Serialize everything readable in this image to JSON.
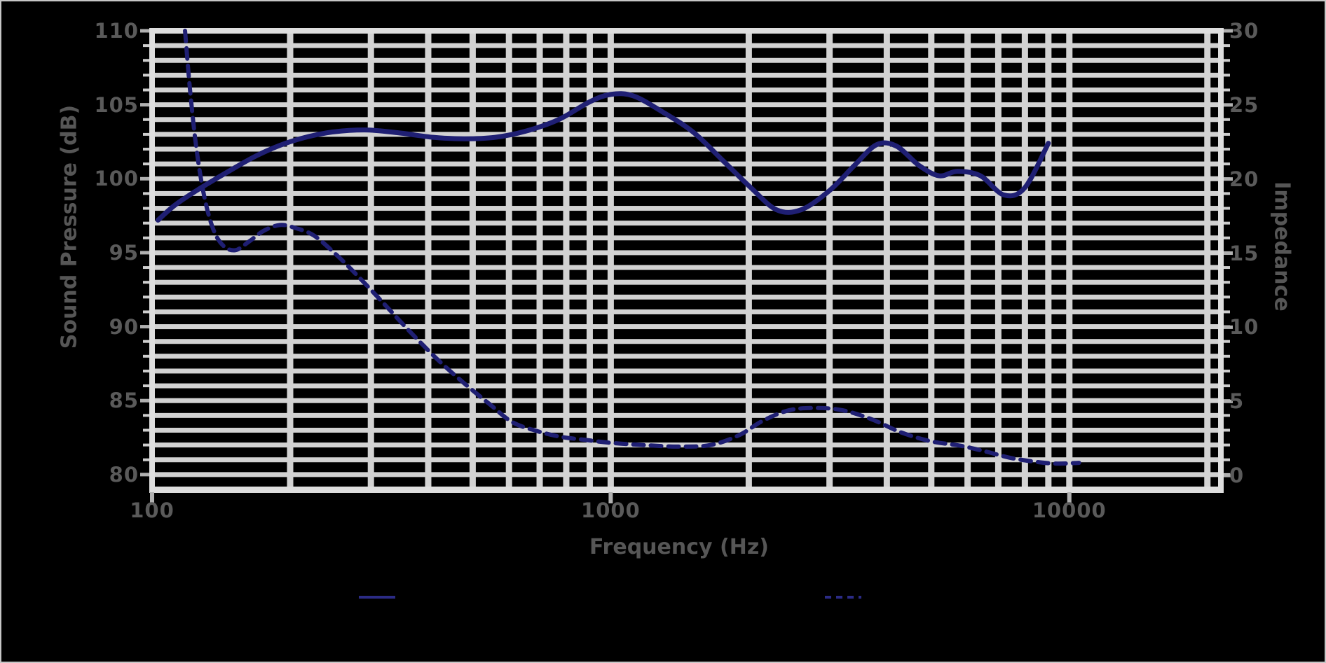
{
  "figure": {
    "background": "#000000",
    "outer_border_color": "#c6c6c6",
    "grid_color": "#d2d2d2",
    "axis_edge_color": "#dedede",
    "tick_mark_color": "#b0b0b0",
    "minor_tick_color": "#cdcdcd",
    "tick_text_color": "#5a5a5a",
    "curve_color": "#1f1f73",
    "legend_line_color": "#2b2b85"
  },
  "legend": {
    "entries": [
      {
        "style": "solid",
        "label": ""
      },
      {
        "style": "dashed",
        "label": ""
      }
    ]
  },
  "chart_data": {
    "type": "line",
    "title": "",
    "x_axis": {
      "label": "Frequency (Hz)",
      "scale": "log",
      "min": 100,
      "max": 21400,
      "tick_values": [
        100,
        1000,
        10000
      ],
      "tick_labels": [
        "100",
        "1000",
        "10000"
      ],
      "minor_gridlines": [
        200,
        300,
        400,
        500,
        600,
        700,
        800,
        900,
        1000,
        2000,
        3000,
        4000,
        5000,
        6000,
        7000,
        8000,
        9000,
        10000,
        20000
      ]
    },
    "y_axis_left": {
      "label": "Sound Pressure (dB)",
      "min": 79,
      "max": 110,
      "tick_values": [
        110,
        105,
        100,
        95,
        90,
        85,
        80
      ],
      "tick_labels": [
        "110",
        "105",
        "100",
        "95",
        "90",
        "85",
        "80"
      ],
      "minor_step": 1
    },
    "y_axis_right": {
      "label": "Impedance",
      "min": -0.94,
      "max": 30,
      "tick_values": [
        30,
        25,
        20,
        15,
        10,
        5,
        0
      ],
      "tick_labels": [
        "30",
        "25",
        "20",
        "15",
        "10",
        "5",
        "0"
      ]
    },
    "grid": {
      "horizontal": "every 1 unit (thick light bars)",
      "vertical": "log decades with minors",
      "visible": true
    },
    "legend_position": "bottom",
    "series": [
      {
        "name": "series-1-solid",
        "axis": "left",
        "style": "solid",
        "color": "#1f1f73",
        "points": [
          [
            103,
            97.2
          ],
          [
            112,
            98.2
          ],
          [
            125,
            99.2
          ],
          [
            145,
            100.4
          ],
          [
            170,
            101.6
          ],
          [
            200,
            102.5
          ],
          [
            240,
            103.1
          ],
          [
            290,
            103.3
          ],
          [
            345,
            103.1
          ],
          [
            410,
            102.8
          ],
          [
            480,
            102.7
          ],
          [
            560,
            102.8
          ],
          [
            650,
            103.2
          ],
          [
            770,
            104.0
          ],
          [
            900,
            105.2
          ],
          [
            1000,
            105.7
          ],
          [
            1120,
            105.6
          ],
          [
            1300,
            104.5
          ],
          [
            1520,
            103.1
          ],
          [
            1760,
            101.2
          ],
          [
            2020,
            99.4
          ],
          [
            2300,
            97.9
          ],
          [
            2600,
            97.9
          ],
          [
            3000,
            99.2
          ],
          [
            3400,
            100.9
          ],
          [
            3800,
            102.3
          ],
          [
            4200,
            102.2
          ],
          [
            4700,
            100.9
          ],
          [
            5200,
            100.2
          ],
          [
            5700,
            100.5
          ],
          [
            6400,
            100.2
          ],
          [
            7200,
            98.9
          ],
          [
            8000,
            99.4
          ],
          [
            9000,
            102.4
          ]
        ]
      },
      {
        "name": "series-2-dashed",
        "axis": "right",
        "style": "dashed",
        "color": "#1f1f73",
        "points": [
          [
            118,
            30.0
          ],
          [
            121,
            26.0
          ],
          [
            125,
            22.0
          ],
          [
            130,
            18.8
          ],
          [
            136,
            16.6
          ],
          [
            143,
            15.5
          ],
          [
            152,
            15.2
          ],
          [
            163,
            15.8
          ],
          [
            175,
            16.5
          ],
          [
            190,
            16.9
          ],
          [
            205,
            16.7
          ],
          [
            225,
            16.2
          ],
          [
            250,
            15.0
          ],
          [
            280,
            13.5
          ],
          [
            320,
            11.6
          ],
          [
            365,
            9.7
          ],
          [
            420,
            7.8
          ],
          [
            480,
            6.2
          ],
          [
            545,
            4.8
          ],
          [
            610,
            3.6
          ],
          [
            690,
            3.0
          ],
          [
            780,
            2.6
          ],
          [
            880,
            2.4
          ],
          [
            1000,
            2.2
          ],
          [
            1180,
            2.05
          ],
          [
            1400,
            1.95
          ],
          [
            1650,
            2.05
          ],
          [
            1900,
            2.7
          ],
          [
            2150,
            3.7
          ],
          [
            2450,
            4.4
          ],
          [
            2800,
            4.55
          ],
          [
            3200,
            4.4
          ],
          [
            3700,
            3.8
          ],
          [
            4300,
            2.9
          ],
          [
            5000,
            2.3
          ],
          [
            5800,
            2.0
          ],
          [
            6600,
            1.6
          ],
          [
            7400,
            1.2
          ],
          [
            8300,
            0.95
          ],
          [
            9300,
            0.8
          ],
          [
            10500,
            0.85
          ]
        ]
      }
    ]
  }
}
